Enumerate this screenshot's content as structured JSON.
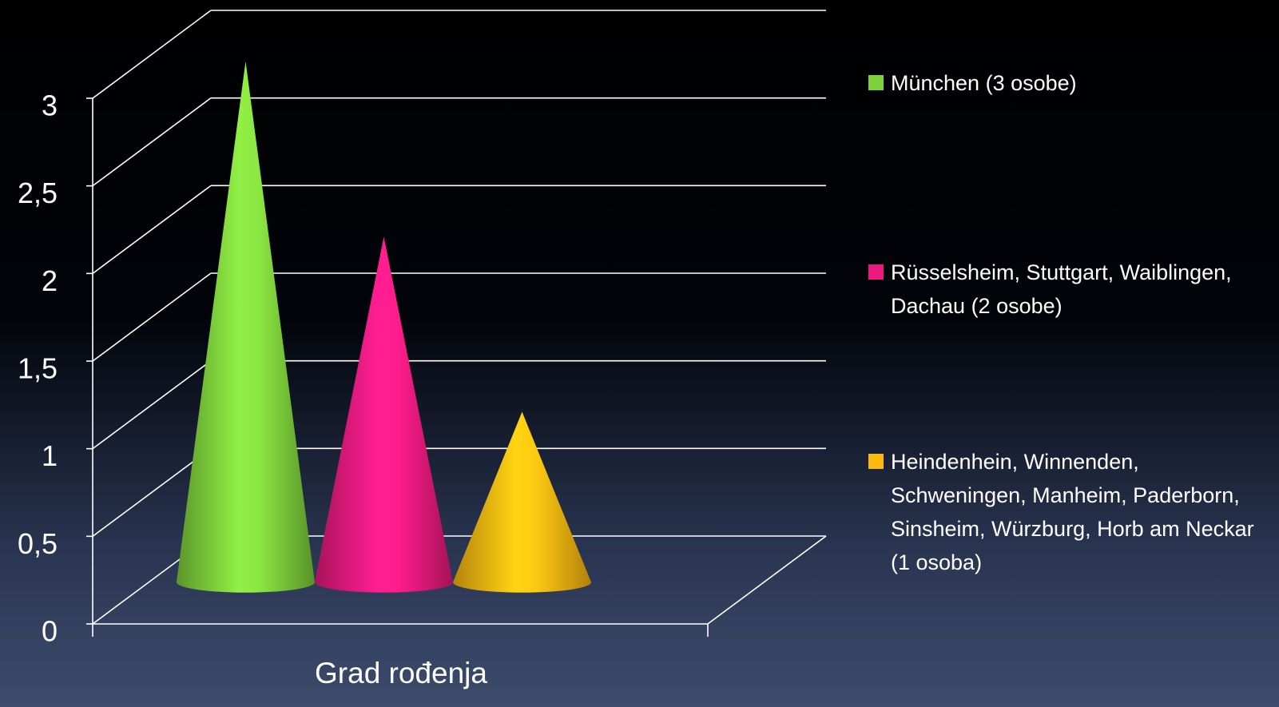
{
  "chart_data": {
    "type": "cone",
    "categories": [
      "Grad rođenja"
    ],
    "series": [
      {
        "name": "München (3 osobe)",
        "color": "#7ed13b",
        "values": [
          3
        ]
      },
      {
        "name": "Rüsselsheim, Stuttgart, Waiblingen, Dachau (2 osobe)",
        "color": "#ea1a7f",
        "values": [
          2
        ]
      },
      {
        "name": "Heindenhein, Winnenden, Schweningen, Manheim, Paderborn, Sinsheim, Würzburg, Horb am Neckar (1 osoba)",
        "color": "#fbb810",
        "values": [
          1
        ]
      }
    ],
    "ylim": [
      0,
      3
    ],
    "yticks": [
      {
        "value": 0,
        "label": "0"
      },
      {
        "value": 0.5,
        "label": "0,5"
      },
      {
        "value": 1,
        "label": "1"
      },
      {
        "value": 1.5,
        "label": "1,5"
      },
      {
        "value": 2,
        "label": "2"
      },
      {
        "value": 2.5,
        "label": "2,5"
      },
      {
        "value": 3,
        "label": "3"
      }
    ],
    "grid": true,
    "legend": "right"
  }
}
